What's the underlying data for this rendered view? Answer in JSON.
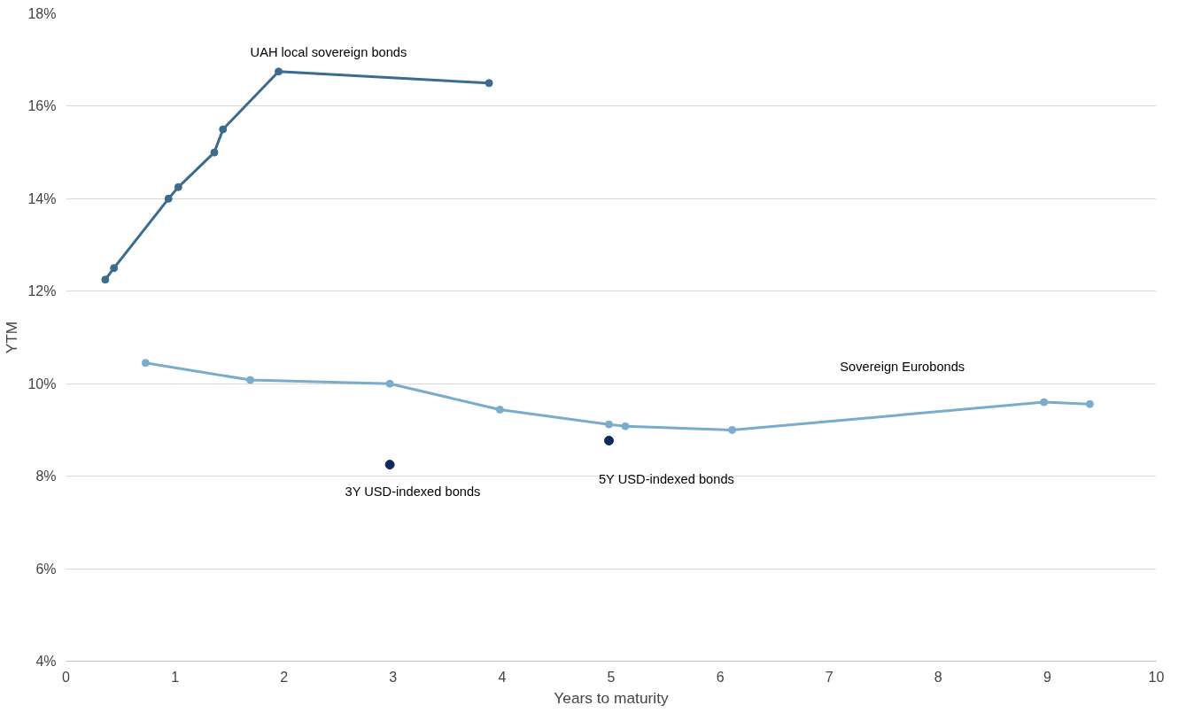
{
  "chart_data": {
    "type": "line",
    "xlabel": "Years to maturity",
    "ylabel": "YTM",
    "xlim": [
      0,
      10
    ],
    "xticks": [
      0,
      1,
      2,
      3,
      4,
      5,
      6,
      7,
      8,
      9,
      10
    ],
    "ylim": [
      4,
      18
    ],
    "yticks": [
      {
        "value": 4,
        "label": "4%"
      },
      {
        "value": 6,
        "label": "6%"
      },
      {
        "value": 8,
        "label": "8%"
      },
      {
        "value": 10,
        "label": "10%"
      },
      {
        "value": 12,
        "label": "12%"
      },
      {
        "value": 14,
        "label": "14%"
      },
      {
        "value": 16,
        "label": "16%"
      },
      {
        "value": 18,
        "label": "18%"
      }
    ],
    "grid": "y",
    "marker": "circle",
    "line_style": "solid",
    "series": [
      {
        "name": "UAH local sovereign bonds",
        "color": "#3b6b8e",
        "x": [
          0.36,
          0.44,
          0.94,
          1.03,
          1.36,
          1.44,
          1.95,
          3.88
        ],
        "values": [
          12.25,
          12.5,
          14.0,
          14.25,
          15.0,
          15.5,
          16.75,
          16.5
        ]
      },
      {
        "name": "Sovereign Eurobonds",
        "color": "#7aaccb",
        "x": [
          0.73,
          1.69,
          2.97,
          3.98,
          4.98,
          5.13,
          6.11,
          8.97,
          9.39
        ],
        "values": [
          10.45,
          10.08,
          10.0,
          9.44,
          9.12,
          9.08,
          9.0,
          9.6,
          9.56
        ]
      },
      {
        "name": "3Y USD-indexed bonds",
        "type": "scatter",
        "color": "#0d2a5c",
        "x": [
          2.97
        ],
        "values": [
          8.25
        ]
      },
      {
        "name": "5Y USD-indexed bonds",
        "type": "scatter",
        "color": "#0d2a5c",
        "x": [
          4.98
        ],
        "values": [
          8.77
        ]
      }
    ]
  }
}
